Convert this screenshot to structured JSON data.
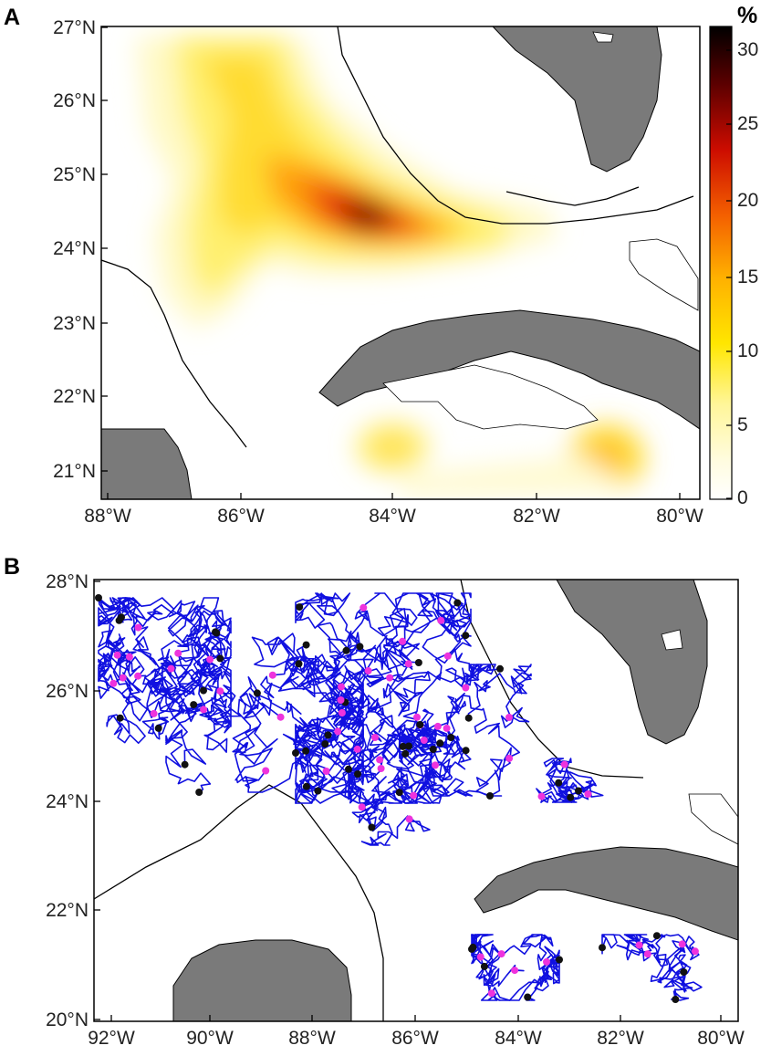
{
  "panel_a": {
    "label": "A",
    "lat_ticks": [
      "27°N",
      "26°N",
      "25°N",
      "24°N",
      "23°N",
      "22°N",
      "21°N"
    ],
    "lon_ticks": [
      "88°W",
      "86°W",
      "84°W",
      "82°W",
      "80°W"
    ],
    "colorbar": {
      "unit": "%",
      "ticks": [
        "30",
        "25",
        "20",
        "15",
        "10",
        "5",
        "0"
      ],
      "range": [
        0,
        32
      ],
      "colors": [
        "#ffffff",
        "#fffab0",
        "#ffee00",
        "#ffb800",
        "#f06000",
        "#c80000",
        "#400000",
        "#000000"
      ]
    }
  },
  "panel_b": {
    "label": "B",
    "lat_ticks": [
      "28°N",
      "26°N",
      "24°N",
      "22°N",
      "20°N"
    ],
    "lon_ticks": [
      "92°W",
      "90°W",
      "88°W",
      "86°W",
      "84°W",
      "82°W",
      "80°W"
    ],
    "track_color": "#1010e0",
    "start_marker_color": "#ee33dd",
    "end_marker_color": "#111111"
  },
  "style": {
    "land_color": "#7a7a7a"
  }
}
